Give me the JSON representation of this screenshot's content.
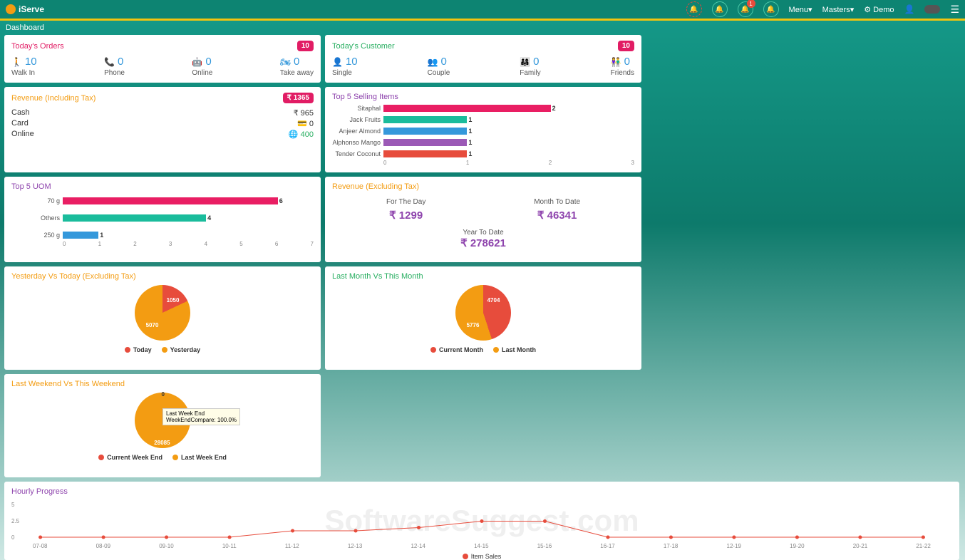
{
  "header": {
    "logo": "iServe",
    "menu": "Menu▾",
    "masters": "Masters▾",
    "demo": "Demo",
    "notif_badge": "1"
  },
  "page_title": "Dashboard",
  "todays_orders": {
    "title": "Today's Orders",
    "badge": "10",
    "items": [
      {
        "icon": "🚶",
        "value": "10",
        "label": "Walk In",
        "color": "#3498db"
      },
      {
        "icon": "📞",
        "value": "0",
        "label": "Phone",
        "color": "#3498db"
      },
      {
        "icon": "🤖",
        "value": "0",
        "label": "Online",
        "color": "#3498db"
      },
      {
        "icon": "🏍",
        "value": "0",
        "label": "Take away",
        "color": "#3498db"
      }
    ]
  },
  "todays_customer": {
    "title": "Today's Customer",
    "badge": "10",
    "items": [
      {
        "icon": "👤",
        "value": "10",
        "label": "Single"
      },
      {
        "icon": "👥",
        "value": "0",
        "label": "Couple"
      },
      {
        "icon": "👨‍👩‍👧",
        "value": "0",
        "label": "Family"
      },
      {
        "icon": "👫",
        "value": "0",
        "label": "Friends"
      }
    ]
  },
  "revenue_inc": {
    "title": "Revenue (Including Tax)",
    "total": "₹ 1365",
    "rows": [
      {
        "label": "Cash",
        "value": "₹ 965",
        "icon": ""
      },
      {
        "label": "Card",
        "value": "0",
        "icon": "💳"
      },
      {
        "label": "Online",
        "value": "400",
        "icon": "🌐",
        "color": "#27ae60"
      }
    ]
  },
  "top5_selling": {
    "title": "Top 5 Selling Items",
    "max": 3,
    "xticks": [
      "0",
      "1",
      "2",
      "3"
    ],
    "bars": [
      {
        "label": "Sitaphal",
        "value": 2,
        "display": "2",
        "color": "#e91e63"
      },
      {
        "label": "Jack Fruits",
        "value": 1,
        "display": "1",
        "color": "#1abc9c"
      },
      {
        "label": "Anjeer Almond",
        "value": 1,
        "display": "1",
        "color": "#3498db"
      },
      {
        "label": "Alphonso Mango",
        "value": 1,
        "display": "1",
        "color": "#9b59b6"
      },
      {
        "label": "Tender Coconut",
        "value": 1,
        "display": "1",
        "color": "#e74c3c"
      }
    ]
  },
  "top5_uom": {
    "title": "Top 5 UOM",
    "max": 7,
    "xticks": [
      "0",
      "1",
      "2",
      "3",
      "4",
      "5",
      "6",
      "7"
    ],
    "bars": [
      {
        "label": "70 g",
        "value": 6,
        "display": "6",
        "color": "#e91e63"
      },
      {
        "label": "Others",
        "value": 4,
        "display": "4",
        "color": "#1abc9c"
      },
      {
        "label": "250 g",
        "value": 1,
        "display": "1",
        "color": "#3498db"
      }
    ]
  },
  "revenue_ex": {
    "title": "Revenue (Excluding Tax)",
    "day_lbl": "For The Day",
    "day_val": "₹ 1299",
    "mtd_lbl": "Month To Date",
    "mtd_val": "₹ 46341",
    "ytd_lbl": "Year To Date",
    "ytd_val": "₹ 278621"
  },
  "pie1": {
    "title": "Yesterday Vs Today (Excluding Tax)",
    "slice1": {
      "label": "Today",
      "value": 1050,
      "display": "1050",
      "color": "#e74c3c",
      "pct": 18
    },
    "slice2": {
      "label": "Yesterday",
      "value": 5070,
      "display": "5070",
      "color": "#f39c12",
      "pct": 82
    }
  },
  "pie2": {
    "title": "Last Month Vs This Month",
    "slice1": {
      "label": "Current Month",
      "value": 4704,
      "display": "4704",
      "color": "#e74c3c",
      "pct": 45
    },
    "slice2": {
      "label": "Last Month",
      "value": 5776,
      "display": "5776",
      "color": "#f39c12",
      "pct": 55
    }
  },
  "pie3": {
    "title": "Last Weekend Vs This Weekend",
    "slice1": {
      "label": "Current Week End",
      "value": 0,
      "display": "0",
      "color": "#e74c3c",
      "pct": 0
    },
    "slice2": {
      "label": "Last Week End",
      "value": 28085,
      "display": "28085",
      "color": "#f39c12",
      "pct": 100
    },
    "tooltip_l1": "Last Week End",
    "tooltip_l2": "WeekEndCompare: 100.0%"
  },
  "hourly": {
    "title": "Hourly Progress",
    "legend": "Item Sales",
    "yticks": [
      "5",
      "2.5",
      "0"
    ],
    "xticks": [
      "07-08",
      "08-09",
      "09-10",
      "10-11",
      "11-12",
      "12-13",
      "12-14",
      "14-15",
      "15-16",
      "16-17",
      "17-18",
      "12-19",
      "19-20",
      "20-21",
      "21-22"
    ],
    "values": [
      0,
      0,
      0,
      0,
      1,
      1,
      1.5,
      2.5,
      2.5,
      0,
      0,
      0,
      0,
      0,
      0
    ],
    "color": "#e74c3c"
  },
  "watermark": "SoftwareSuggest.com"
}
